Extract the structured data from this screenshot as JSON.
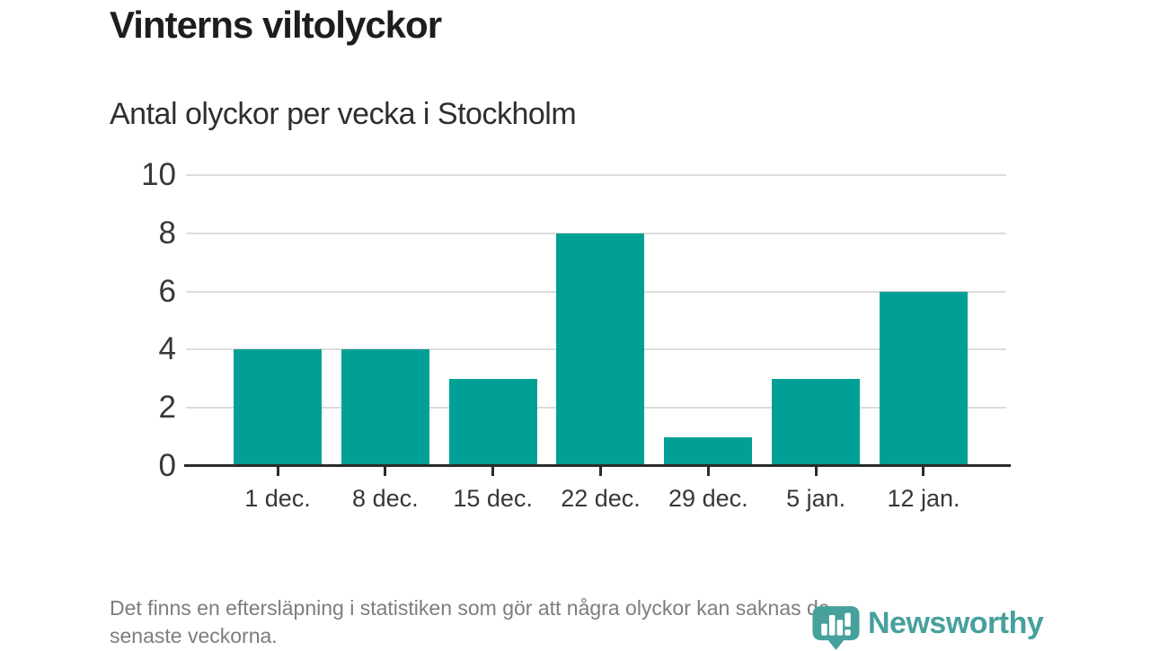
{
  "title": "Vinterns viltolyckor",
  "subtitle": "Antal olyckor per vecka i Stockholm",
  "chart_data": {
    "type": "bar",
    "categories": [
      "1 dec.",
      "8 dec.",
      "15 dec.",
      "22 dec.",
      "29 dec.",
      "5 jan.",
      "12 jan."
    ],
    "values": [
      4,
      4,
      3,
      8,
      1,
      3,
      6
    ],
    "title": "Vinterns viltolyckor",
    "subtitle": "Antal olyckor per vecka i Stockholm",
    "xlabel": "",
    "ylabel": "",
    "ylim": [
      0,
      10
    ],
    "yticks": [
      0,
      2,
      4,
      6,
      8,
      10
    ],
    "grid": true,
    "legend": false,
    "bar_color": "#00a096",
    "grid_color": "#dcdcdc",
    "axis_color": "#2b2b2b",
    "label_color": "#383838"
  },
  "footer": {
    "lines": [
      "Det finns en eftersläpning i statistiken som gör att några olyckor kan saknas de",
      "senaste veckorna."
    ]
  },
  "branding": {
    "wordmark": "Newsworthy",
    "icon": "newsworthy-pin-bar-chart-icon",
    "color": "#46a09c"
  }
}
